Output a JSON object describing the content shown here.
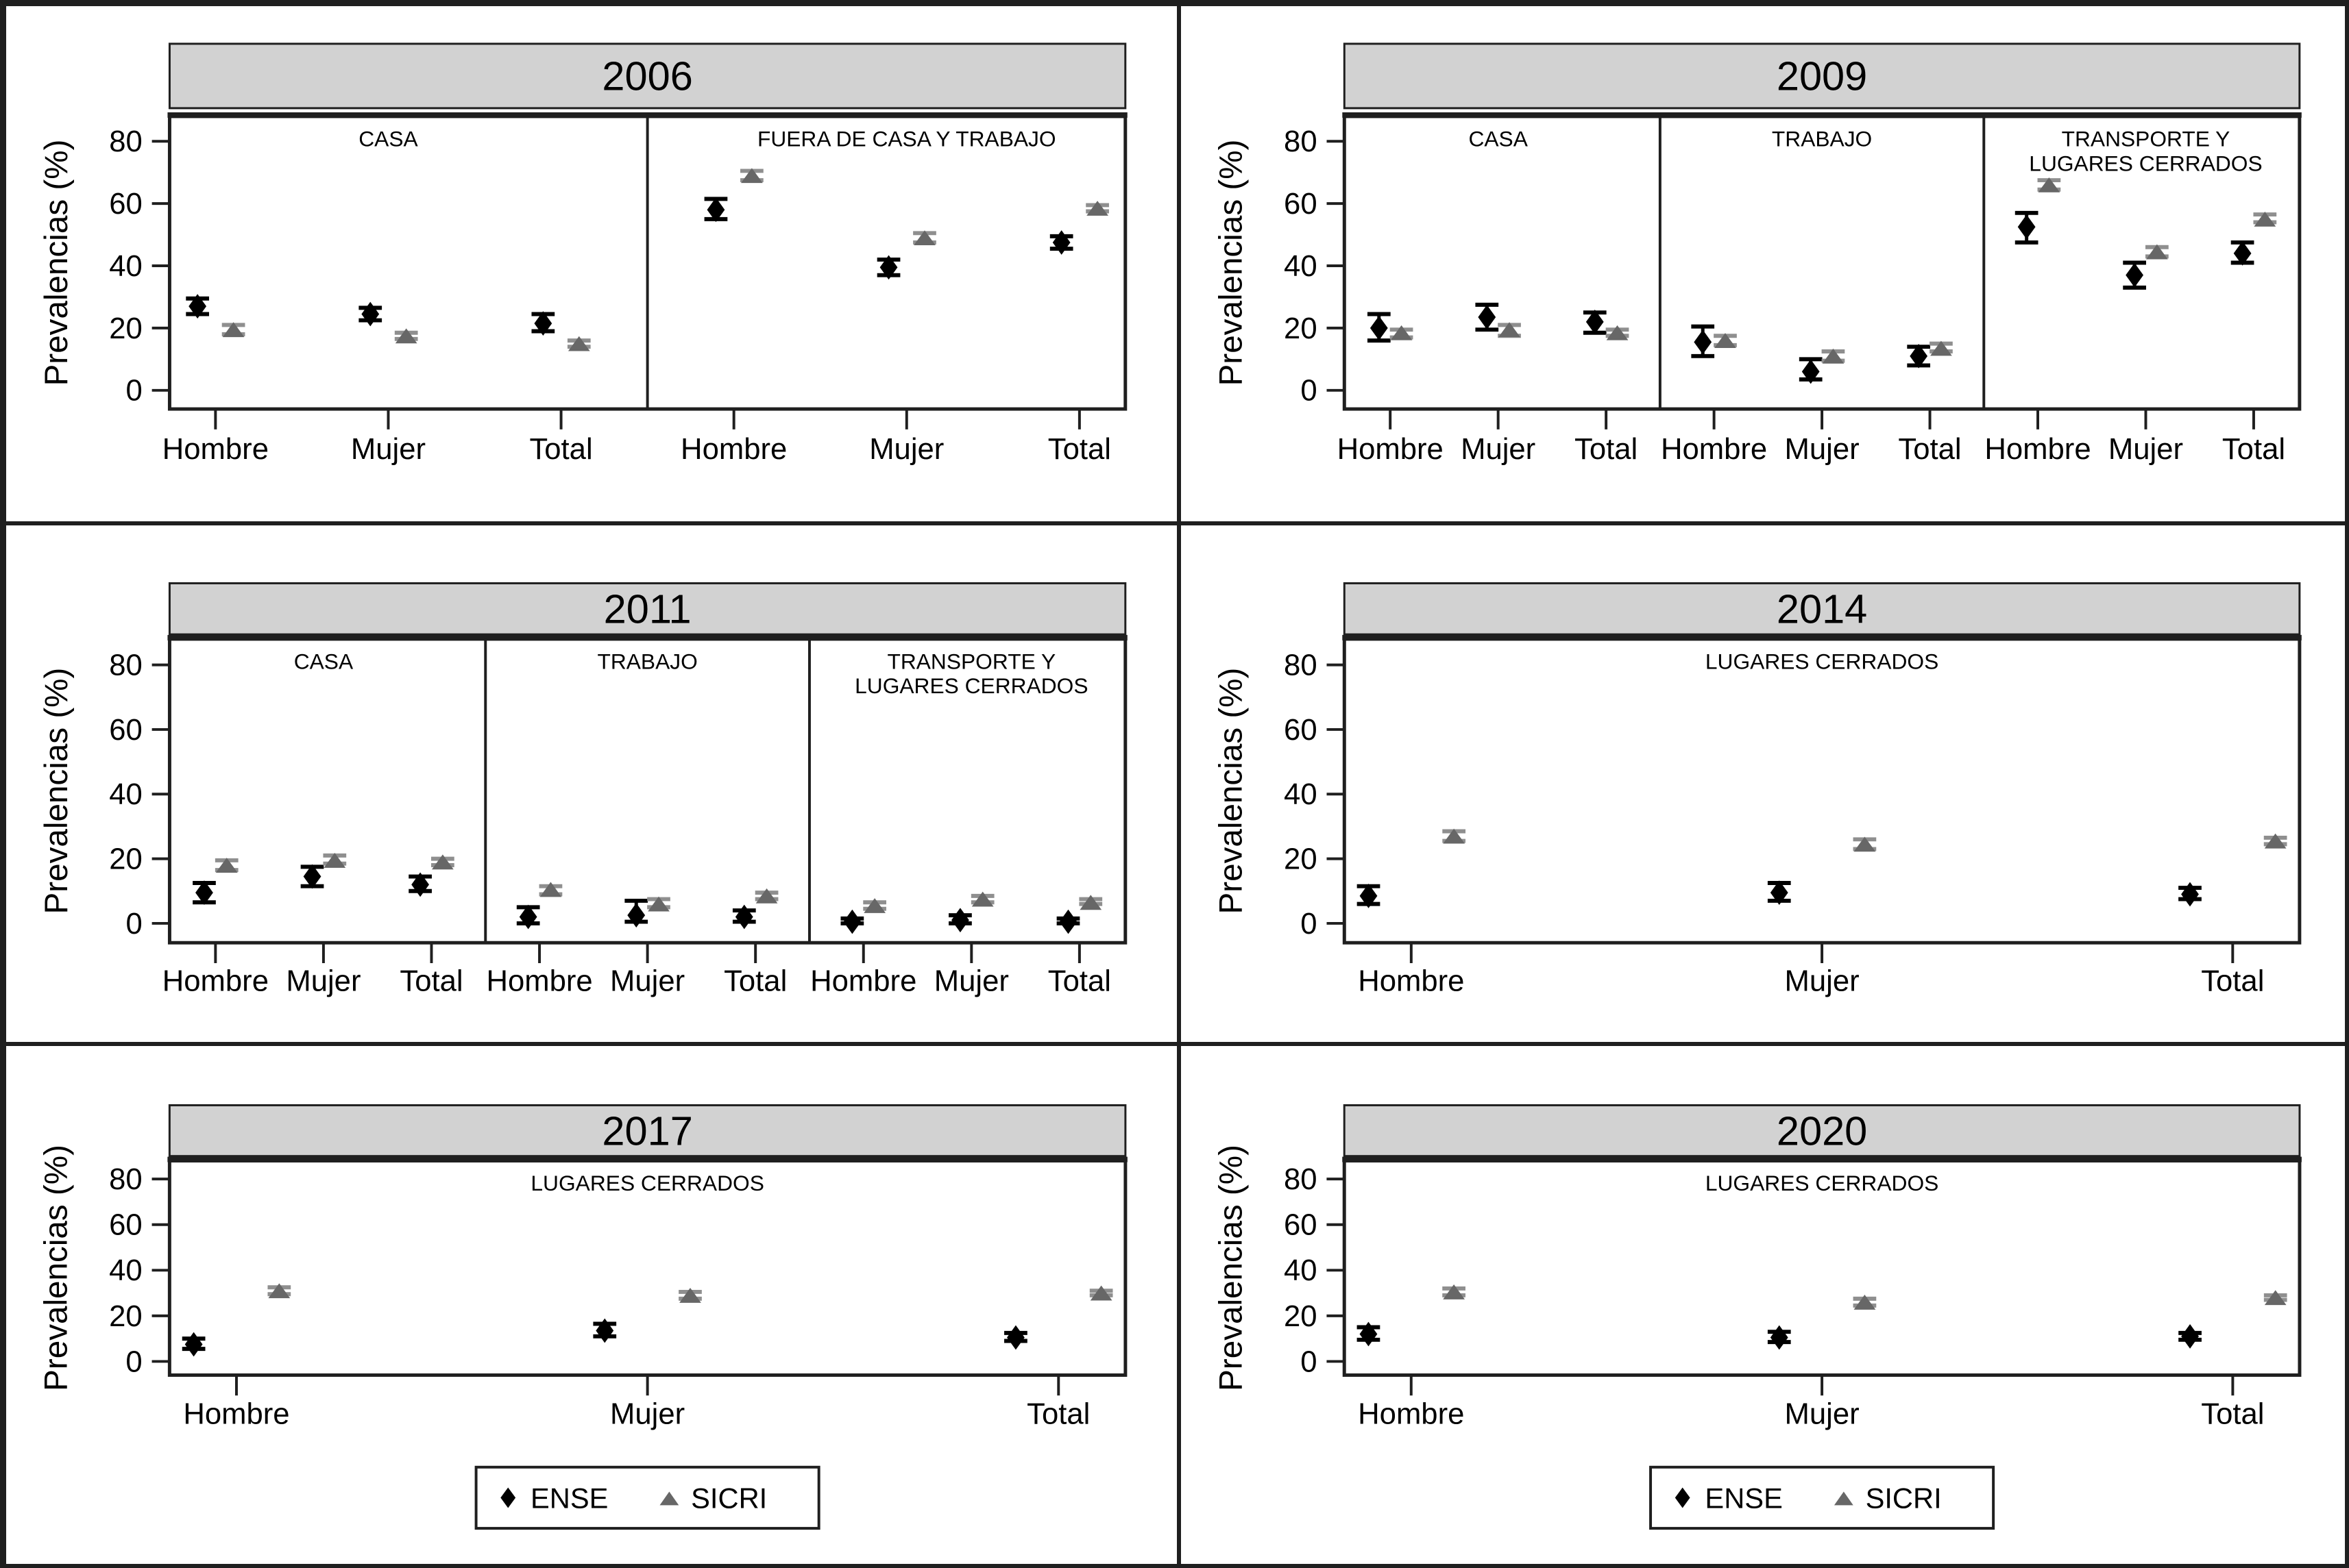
{
  "chart_data": {
    "type": "scatter",
    "title": "",
    "ylabel": "Prevalencias (%)",
    "yticks": [
      0,
      20,
      40,
      60,
      80
    ],
    "ylim": [
      -6,
      88
    ],
    "grid": "off",
    "legend_position": "bottom-center",
    "legend": [
      {
        "name": "ENSE",
        "marker": "diamond",
        "color": "#000000",
        "bar_color": "#000000"
      },
      {
        "name": "SICRI",
        "marker": "triangle",
        "color": "#676767",
        "bar_color": "#8f8f8f"
      }
    ],
    "colors": {
      "header_fill": "#d2d2d2",
      "frame": "#1f1f1f",
      "background": "#ffffff",
      "text": "#000000"
    },
    "panels": [
      {
        "year": "2006",
        "show_legend": false,
        "subpanels": [
          {
            "label_lines": [
              "CASA"
            ],
            "points": [
              {
                "category": "Hombre",
                "ENSE": {
                  "value": 27.0,
                  "ci": [
                    24.5,
                    29.5
                  ]
                },
                "SICRI": {
                  "value": 19.5,
                  "ci": [
                    18.0,
                    21.0
                  ]
                }
              },
              {
                "category": "Mujer",
                "ENSE": {
                  "value": 24.5,
                  "ci": [
                    22.5,
                    26.5
                  ]
                },
                "SICRI": {
                  "value": 17.5,
                  "ci": [
                    16.5,
                    18.5
                  ]
                }
              },
              {
                "category": "Total",
                "ENSE": {
                  "value": 21.5,
                  "ci": [
                    19.0,
                    24.5
                  ]
                },
                "SICRI": {
                  "value": 15.0,
                  "ci": [
                    14.0,
                    16.0
                  ]
                }
              }
            ]
          },
          {
            "label_lines": [
              "FUERA DE CASA Y TRABAJO"
            ],
            "points": [
              {
                "category": "Hombre",
                "ENSE": {
                  "value": 58.0,
                  "ci": [
                    55.0,
                    61.5
                  ]
                },
                "SICRI": {
                  "value": 69.0,
                  "ci": [
                    67.5,
                    70.5
                  ]
                }
              },
              {
                "category": "Mujer",
                "ENSE": {
                  "value": 39.5,
                  "ci": [
                    37.0,
                    42.0
                  ]
                },
                "SICRI": {
                  "value": 49.0,
                  "ci": [
                    47.5,
                    50.5
                  ]
                }
              },
              {
                "category": "Total",
                "ENSE": {
                  "value": 47.5,
                  "ci": [
                    45.5,
                    49.5
                  ]
                },
                "SICRI": {
                  "value": 58.5,
                  "ci": [
                    57.5,
                    59.5
                  ]
                }
              }
            ]
          }
        ]
      },
      {
        "year": "2009",
        "show_legend": false,
        "subpanels": [
          {
            "label_lines": [
              "CASA"
            ],
            "points": [
              {
                "category": "Hombre",
                "ENSE": {
                  "value": 20.0,
                  "ci": [
                    16.0,
                    24.5
                  ]
                },
                "SICRI": {
                  "value": 18.5,
                  "ci": [
                    17.0,
                    19.5
                  ]
                }
              },
              {
                "category": "Mujer",
                "ENSE": {
                  "value": 23.5,
                  "ci": [
                    19.5,
                    27.5
                  ]
                },
                "SICRI": {
                  "value": 19.5,
                  "ci": [
                    17.5,
                    21.0
                  ]
                }
              },
              {
                "category": "Total",
                "ENSE": {
                  "value": 22.0,
                  "ci": [
                    18.5,
                    25.0
                  ]
                },
                "SICRI": {
                  "value": 18.5,
                  "ci": [
                    17.5,
                    19.5
                  ]
                }
              }
            ]
          },
          {
            "label_lines": [
              "TRABAJO"
            ],
            "points": [
              {
                "category": "Hombre",
                "ENSE": {
                  "value": 15.5,
                  "ci": [
                    11.0,
                    20.5
                  ]
                },
                "SICRI": {
                  "value": 16.0,
                  "ci": [
                    14.5,
                    17.5
                  ]
                }
              },
              {
                "category": "Mujer",
                "ENSE": {
                  "value": 6.0,
                  "ci": [
                    3.5,
                    10.0
                  ]
                },
                "SICRI": {
                  "value": 11.0,
                  "ci": [
                    9.5,
                    12.5
                  ]
                }
              },
              {
                "category": "Total",
                "ENSE": {
                  "value": 11.0,
                  "ci": [
                    8.0,
                    14.0
                  ]
                },
                "SICRI": {
                  "value": 13.5,
                  "ci": [
                    12.5,
                    15.0
                  ]
                }
              }
            ]
          },
          {
            "label_lines": [
              "TRANSPORTE Y",
              "LUGARES CERRADOS"
            ],
            "points": [
              {
                "category": "Hombre",
                "ENSE": {
                  "value": 52.5,
                  "ci": [
                    47.5,
                    57.0
                  ]
                },
                "SICRI": {
                  "value": 66.0,
                  "ci": [
                    64.5,
                    67.5
                  ]
                }
              },
              {
                "category": "Mujer",
                "ENSE": {
                  "value": 37.0,
                  "ci": [
                    33.0,
                    41.0
                  ]
                },
                "SICRI": {
                  "value": 44.5,
                  "ci": [
                    43.0,
                    46.0
                  ]
                }
              },
              {
                "category": "Total",
                "ENSE": {
                  "value": 44.0,
                  "ci": [
                    41.0,
                    47.5
                  ]
                },
                "SICRI": {
                  "value": 55.0,
                  "ci": [
                    54.0,
                    56.5
                  ]
                }
              }
            ]
          }
        ]
      },
      {
        "year": "2011",
        "show_legend": false,
        "subpanels": [
          {
            "label_lines": [
              "CASA"
            ],
            "points": [
              {
                "category": "Hombre",
                "ENSE": {
                  "value": 9.5,
                  "ci": [
                    6.5,
                    12.5
                  ]
                },
                "SICRI": {
                  "value": 18.0,
                  "ci": [
                    16.5,
                    19.5
                  ]
                }
              },
              {
                "category": "Mujer",
                "ENSE": {
                  "value": 14.5,
                  "ci": [
                    11.5,
                    17.5
                  ]
                },
                "SICRI": {
                  "value": 19.5,
                  "ci": [
                    18.5,
                    21.0
                  ]
                }
              },
              {
                "category": "Total",
                "ENSE": {
                  "value": 12.0,
                  "ci": [
                    10.0,
                    14.5
                  ]
                },
                "SICRI": {
                  "value": 19.0,
                  "ci": [
                    18.0,
                    20.0
                  ]
                }
              }
            ]
          },
          {
            "label_lines": [
              "TRABAJO"
            ],
            "points": [
              {
                "category": "Hombre",
                "ENSE": {
                  "value": 2.0,
                  "ci": [
                    0.0,
                    5.0
                  ]
                },
                "SICRI": {
                  "value": 10.5,
                  "ci": [
                    9.0,
                    11.5
                  ]
                }
              },
              {
                "category": "Mujer",
                "ENSE": {
                  "value": 2.5,
                  "ci": [
                    0.5,
                    7.0
                  ]
                },
                "SICRI": {
                  "value": 6.0,
                  "ci": [
                    5.0,
                    7.5
                  ]
                }
              },
              {
                "category": "Total",
                "ENSE": {
                  "value": 2.0,
                  "ci": [
                    0.5,
                    4.0
                  ]
                },
                "SICRI": {
                  "value": 8.5,
                  "ci": [
                    7.5,
                    9.5
                  ]
                }
              }
            ]
          },
          {
            "label_lines": [
              "TRANSPORTE Y",
              "LUGARES CERRADOS"
            ],
            "points": [
              {
                "category": "Hombre",
                "ENSE": {
                  "value": 0.5,
                  "ci": [
                    0.0,
                    1.5
                  ]
                },
                "SICRI": {
                  "value": 5.5,
                  "ci": [
                    4.5,
                    6.5
                  ]
                }
              },
              {
                "category": "Mujer",
                "ENSE": {
                  "value": 1.0,
                  "ci": [
                    0.0,
                    2.5
                  ]
                },
                "SICRI": {
                  "value": 7.5,
                  "ci": [
                    6.5,
                    8.5
                  ]
                }
              },
              {
                "category": "Total",
                "ENSE": {
                  "value": 0.5,
                  "ci": [
                    0.0,
                    1.5
                  ]
                },
                "SICRI": {
                  "value": 6.5,
                  "ci": [
                    6.0,
                    7.5
                  ]
                }
              }
            ]
          }
        ]
      },
      {
        "year": "2014",
        "show_legend": false,
        "subpanels": [
          {
            "label_lines": [
              "LUGARES CERRADOS"
            ],
            "points": [
              {
                "category": "Hombre",
                "ENSE": {
                  "value": 8.5,
                  "ci": [
                    6.0,
                    11.5
                  ]
                },
                "SICRI": {
                  "value": 27.0,
                  "ci": [
                    25.5,
                    28.5
                  ]
                }
              },
              {
                "category": "Mujer",
                "ENSE": {
                  "value": 9.5,
                  "ci": [
                    7.0,
                    12.5
                  ]
                },
                "SICRI": {
                  "value": 24.5,
                  "ci": [
                    23.0,
                    26.0
                  ]
                }
              },
              {
                "category": "Total",
                "ENSE": {
                  "value": 9.0,
                  "ci": [
                    7.5,
                    11.0
                  ]
                },
                "SICRI": {
                  "value": 25.5,
                  "ci": [
                    24.5,
                    26.5
                  ]
                }
              }
            ]
          }
        ]
      },
      {
        "year": "2017",
        "show_legend": true,
        "subpanels": [
          {
            "label_lines": [
              "LUGARES CERRADOS"
            ],
            "points": [
              {
                "category": "Hombre",
                "ENSE": {
                  "value": 7.5,
                  "ci": [
                    5.5,
                    10.0
                  ]
                },
                "SICRI": {
                  "value": 31.0,
                  "ci": [
                    29.5,
                    32.5
                  ]
                }
              },
              {
                "category": "Mujer",
                "ENSE": {
                  "value": 13.5,
                  "ci": [
                    11.0,
                    16.5
                  ]
                },
                "SICRI": {
                  "value": 29.0,
                  "ci": [
                    27.5,
                    30.5
                  ]
                }
              },
              {
                "category": "Total",
                "ENSE": {
                  "value": 10.5,
                  "ci": [
                    9.0,
                    12.5
                  ]
                },
                "SICRI": {
                  "value": 30.0,
                  "ci": [
                    29.0,
                    31.0
                  ]
                }
              }
            ]
          }
        ]
      },
      {
        "year": "2020",
        "show_legend": true,
        "subpanels": [
          {
            "label_lines": [
              "LUGARES CERRADOS"
            ],
            "points": [
              {
                "category": "Hombre",
                "ENSE": {
                  "value": 12.0,
                  "ci": [
                    9.5,
                    15.0
                  ]
                },
                "SICRI": {
                  "value": 30.5,
                  "ci": [
                    29.0,
                    32.0
                  ]
                }
              },
              {
                "category": "Mujer",
                "ENSE": {
                  "value": 10.5,
                  "ci": [
                    8.5,
                    13.0
                  ]
                },
                "SICRI": {
                  "value": 26.0,
                  "ci": [
                    24.5,
                    27.5
                  ]
                }
              },
              {
                "category": "Total",
                "ENSE": {
                  "value": 11.0,
                  "ci": [
                    9.5,
                    12.5
                  ]
                },
                "SICRI": {
                  "value": 28.0,
                  "ci": [
                    27.0,
                    29.0
                  ]
                }
              }
            ]
          }
        ]
      }
    ]
  }
}
